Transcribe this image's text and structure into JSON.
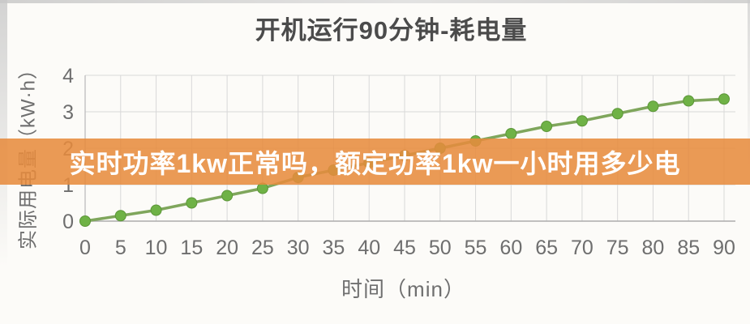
{
  "banner": {
    "text": "实时功率1kw正常吗，额定功率1kw一小时用多少电",
    "bg_color": "#E78B3D",
    "text_color": "#FFFFFF"
  },
  "chart_data": {
    "type": "line",
    "title": "开机运行90分钟-耗电量",
    "xlabel": "时间（min）",
    "ylabel": "实际用电量（kW·h）",
    "x": [
      0,
      5,
      10,
      15,
      20,
      25,
      30,
      35,
      40,
      45,
      50,
      55,
      60,
      65,
      70,
      75,
      80,
      85,
      90
    ],
    "series": [
      {
        "name": "耗电量",
        "values": [
          0,
          0.15,
          0.3,
          0.5,
          0.7,
          0.9,
          1.2,
          1.4,
          1.6,
          1.8,
          2.0,
          2.2,
          2.4,
          2.6,
          2.75,
          2.95,
          3.15,
          3.3,
          3.35
        ]
      }
    ],
    "xlim": [
      0,
      90
    ],
    "ylim": [
      0,
      4
    ],
    "y_ticks": [
      0,
      1,
      2,
      3,
      4
    ],
    "grid": "on",
    "legend": "none",
    "colors": {
      "line": "#7FA65C",
      "marker_fill": "#6FB246",
      "marker_stroke": "#5C9638",
      "gridline": "#D8D8D8",
      "axis_left": "#BDBDBD",
      "axis_bottom": "#ACACAC",
      "tick_text": "#6E6E6E",
      "title_text": "#4B4B4B"
    }
  }
}
